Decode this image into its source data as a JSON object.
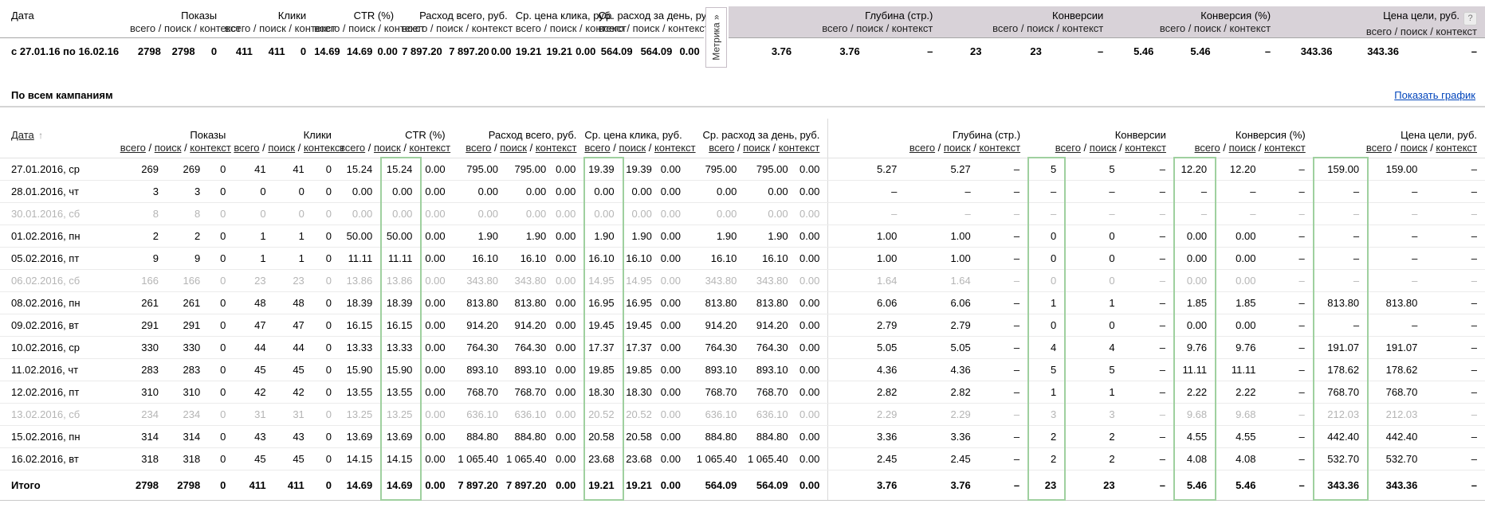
{
  "colors": {
    "highlight_border": "#9fd09f",
    "metrika_header_bg": "#d8d2d8",
    "link_blue": "#0044bb",
    "muted_row_text": "#b5b5b5"
  },
  "subcolumns": {
    "labels": [
      "всего",
      "поиск",
      "контекст"
    ],
    "keys": [
      "total",
      "search",
      "context"
    ],
    "separator": " / ",
    "joined": "всего / поиск / контекст"
  },
  "groups": [
    {
      "key": "impressions",
      "label": "Показы",
      "metrika": false
    },
    {
      "key": "clicks",
      "label": "Клики",
      "metrika": false
    },
    {
      "key": "ctr",
      "label": "CTR (%)",
      "metrika": false
    },
    {
      "key": "cost-total",
      "label": "Расход всего, руб.",
      "metrika": false
    },
    {
      "key": "avg-click-cost",
      "label": "Ср. цена клика, руб.",
      "metrika": false
    },
    {
      "key": "avg-daily-cost",
      "label": "Ср. расход за день, руб.",
      "metrika": false
    },
    {
      "key": "depth",
      "label": "Глубина (стр.)",
      "metrika": true
    },
    {
      "key": "conversions",
      "label": "Конверсии",
      "metrika": true
    },
    {
      "key": "conversion-rate",
      "label": "Конверсия (%)",
      "metrika": true
    },
    {
      "key": "goal-price",
      "label": "Цена цели, руб.",
      "metrika": true,
      "help": "?"
    }
  ],
  "summary": {
    "date_label": "Дата",
    "date_range": "с 27.01.16 по 16.02.16",
    "metrika_tab": "Метрика »",
    "values": [
      [
        "2798",
        "2798",
        "0"
      ],
      [
        "411",
        "411",
        "0"
      ],
      [
        "14.69",
        "14.69",
        "0.00"
      ],
      [
        "7 897.20",
        "7 897.20",
        "0.00"
      ],
      [
        "19.21",
        "19.21",
        "0.00"
      ],
      [
        "564.09",
        "564.09",
        "0.00"
      ],
      [
        "3.76",
        "3.76",
        "–"
      ],
      [
        "23",
        "23",
        "–"
      ],
      [
        "5.46",
        "5.46",
        "–"
      ],
      [
        "343.36",
        "343.36",
        "–"
      ]
    ]
  },
  "section": {
    "title": "По всем кампаниям",
    "chart_link": "Показать график"
  },
  "table": {
    "date_header": "Дата",
    "sort_arrow": "↑",
    "highlighted_cells": [
      [
        2,
        1
      ],
      [
        4,
        0
      ],
      [
        7,
        0
      ],
      [
        8,
        0
      ],
      [
        9,
        0
      ]
    ],
    "rows": [
      {
        "date": "27.01.2016, ср",
        "muted": false,
        "cells": [
          [
            "269",
            "269",
            "0"
          ],
          [
            "41",
            "41",
            "0"
          ],
          [
            "15.24",
            "15.24",
            "0.00"
          ],
          [
            "795.00",
            "795.00",
            "0.00"
          ],
          [
            "19.39",
            "19.39",
            "0.00"
          ],
          [
            "795.00",
            "795.00",
            "0.00"
          ],
          [
            "5.27",
            "5.27",
            "–"
          ],
          [
            "5",
            "5",
            "–"
          ],
          [
            "12.20",
            "12.20",
            "–"
          ],
          [
            "159.00",
            "159.00",
            "–"
          ]
        ]
      },
      {
        "date": "28.01.2016, чт",
        "muted": false,
        "cells": [
          [
            "3",
            "3",
            "0"
          ],
          [
            "0",
            "0",
            "0"
          ],
          [
            "0.00",
            "0.00",
            "0.00"
          ],
          [
            "0.00",
            "0.00",
            "0.00"
          ],
          [
            "0.00",
            "0.00",
            "0.00"
          ],
          [
            "0.00",
            "0.00",
            "0.00"
          ],
          [
            "–",
            "–",
            "–"
          ],
          [
            "–",
            "–",
            "–"
          ],
          [
            "–",
            "–",
            "–"
          ],
          [
            "–",
            "–",
            "–"
          ]
        ]
      },
      {
        "date": "30.01.2016, сб",
        "muted": true,
        "cells": [
          [
            "8",
            "8",
            "0"
          ],
          [
            "0",
            "0",
            "0"
          ],
          [
            "0.00",
            "0.00",
            "0.00"
          ],
          [
            "0.00",
            "0.00",
            "0.00"
          ],
          [
            "0.00",
            "0.00",
            "0.00"
          ],
          [
            "0.00",
            "0.00",
            "0.00"
          ],
          [
            "–",
            "–",
            "–"
          ],
          [
            "–",
            "–",
            "–"
          ],
          [
            "–",
            "–",
            "–"
          ],
          [
            "–",
            "–",
            "–"
          ]
        ]
      },
      {
        "date": "01.02.2016, пн",
        "muted": false,
        "cells": [
          [
            "2",
            "2",
            "0"
          ],
          [
            "1",
            "1",
            "0"
          ],
          [
            "50.00",
            "50.00",
            "0.00"
          ],
          [
            "1.90",
            "1.90",
            "0.00"
          ],
          [
            "1.90",
            "1.90",
            "0.00"
          ],
          [
            "1.90",
            "1.90",
            "0.00"
          ],
          [
            "1.00",
            "1.00",
            "–"
          ],
          [
            "0",
            "0",
            "–"
          ],
          [
            "0.00",
            "0.00",
            "–"
          ],
          [
            "–",
            "–",
            "–"
          ]
        ]
      },
      {
        "date": "05.02.2016, пт",
        "muted": false,
        "cells": [
          [
            "9",
            "9",
            "0"
          ],
          [
            "1",
            "1",
            "0"
          ],
          [
            "11.11",
            "11.11",
            "0.00"
          ],
          [
            "16.10",
            "16.10",
            "0.00"
          ],
          [
            "16.10",
            "16.10",
            "0.00"
          ],
          [
            "16.10",
            "16.10",
            "0.00"
          ],
          [
            "1.00",
            "1.00",
            "–"
          ],
          [
            "0",
            "0",
            "–"
          ],
          [
            "0.00",
            "0.00",
            "–"
          ],
          [
            "–",
            "–",
            "–"
          ]
        ]
      },
      {
        "date": "06.02.2016, сб",
        "muted": true,
        "cells": [
          [
            "166",
            "166",
            "0"
          ],
          [
            "23",
            "23",
            "0"
          ],
          [
            "13.86",
            "13.86",
            "0.00"
          ],
          [
            "343.80",
            "343.80",
            "0.00"
          ],
          [
            "14.95",
            "14.95",
            "0.00"
          ],
          [
            "343.80",
            "343.80",
            "0.00"
          ],
          [
            "1.64",
            "1.64",
            "–"
          ],
          [
            "0",
            "0",
            "–"
          ],
          [
            "0.00",
            "0.00",
            "–"
          ],
          [
            "–",
            "–",
            "–"
          ]
        ]
      },
      {
        "date": "08.02.2016, пн",
        "muted": false,
        "cells": [
          [
            "261",
            "261",
            "0"
          ],
          [
            "48",
            "48",
            "0"
          ],
          [
            "18.39",
            "18.39",
            "0.00"
          ],
          [
            "813.80",
            "813.80",
            "0.00"
          ],
          [
            "16.95",
            "16.95",
            "0.00"
          ],
          [
            "813.80",
            "813.80",
            "0.00"
          ],
          [
            "6.06",
            "6.06",
            "–"
          ],
          [
            "1",
            "1",
            "–"
          ],
          [
            "1.85",
            "1.85",
            "–"
          ],
          [
            "813.80",
            "813.80",
            "–"
          ]
        ]
      },
      {
        "date": "09.02.2016, вт",
        "muted": false,
        "cells": [
          [
            "291",
            "291",
            "0"
          ],
          [
            "47",
            "47",
            "0"
          ],
          [
            "16.15",
            "16.15",
            "0.00"
          ],
          [
            "914.20",
            "914.20",
            "0.00"
          ],
          [
            "19.45",
            "19.45",
            "0.00"
          ],
          [
            "914.20",
            "914.20",
            "0.00"
          ],
          [
            "2.79",
            "2.79",
            "–"
          ],
          [
            "0",
            "0",
            "–"
          ],
          [
            "0.00",
            "0.00",
            "–"
          ],
          [
            "–",
            "–",
            "–"
          ]
        ]
      },
      {
        "date": "10.02.2016, ср",
        "muted": false,
        "cells": [
          [
            "330",
            "330",
            "0"
          ],
          [
            "44",
            "44",
            "0"
          ],
          [
            "13.33",
            "13.33",
            "0.00"
          ],
          [
            "764.30",
            "764.30",
            "0.00"
          ],
          [
            "17.37",
            "17.37",
            "0.00"
          ],
          [
            "764.30",
            "764.30",
            "0.00"
          ],
          [
            "5.05",
            "5.05",
            "–"
          ],
          [
            "4",
            "4",
            "–"
          ],
          [
            "9.76",
            "9.76",
            "–"
          ],
          [
            "191.07",
            "191.07",
            "–"
          ]
        ]
      },
      {
        "date": "11.02.2016, чт",
        "muted": false,
        "cells": [
          [
            "283",
            "283",
            "0"
          ],
          [
            "45",
            "45",
            "0"
          ],
          [
            "15.90",
            "15.90",
            "0.00"
          ],
          [
            "893.10",
            "893.10",
            "0.00"
          ],
          [
            "19.85",
            "19.85",
            "0.00"
          ],
          [
            "893.10",
            "893.10",
            "0.00"
          ],
          [
            "4.36",
            "4.36",
            "–"
          ],
          [
            "5",
            "5",
            "–"
          ],
          [
            "11.11",
            "11.11",
            "–"
          ],
          [
            "178.62",
            "178.62",
            "–"
          ]
        ]
      },
      {
        "date": "12.02.2016, пт",
        "muted": false,
        "cells": [
          [
            "310",
            "310",
            "0"
          ],
          [
            "42",
            "42",
            "0"
          ],
          [
            "13.55",
            "13.55",
            "0.00"
          ],
          [
            "768.70",
            "768.70",
            "0.00"
          ],
          [
            "18.30",
            "18.30",
            "0.00"
          ],
          [
            "768.70",
            "768.70",
            "0.00"
          ],
          [
            "2.82",
            "2.82",
            "–"
          ],
          [
            "1",
            "1",
            "–"
          ],
          [
            "2.22",
            "2.22",
            "–"
          ],
          [
            "768.70",
            "768.70",
            "–"
          ]
        ]
      },
      {
        "date": "13.02.2016, сб",
        "muted": true,
        "cells": [
          [
            "234",
            "234",
            "0"
          ],
          [
            "31",
            "31",
            "0"
          ],
          [
            "13.25",
            "13.25",
            "0.00"
          ],
          [
            "636.10",
            "636.10",
            "0.00"
          ],
          [
            "20.52",
            "20.52",
            "0.00"
          ],
          [
            "636.10",
            "636.10",
            "0.00"
          ],
          [
            "2.29",
            "2.29",
            "–"
          ],
          [
            "3",
            "3",
            "–"
          ],
          [
            "9.68",
            "9.68",
            "–"
          ],
          [
            "212.03",
            "212.03",
            "–"
          ]
        ]
      },
      {
        "date": "15.02.2016, пн",
        "muted": false,
        "cells": [
          [
            "314",
            "314",
            "0"
          ],
          [
            "43",
            "43",
            "0"
          ],
          [
            "13.69",
            "13.69",
            "0.00"
          ],
          [
            "884.80",
            "884.80",
            "0.00"
          ],
          [
            "20.58",
            "20.58",
            "0.00"
          ],
          [
            "884.80",
            "884.80",
            "0.00"
          ],
          [
            "3.36",
            "3.36",
            "–"
          ],
          [
            "2",
            "2",
            "–"
          ],
          [
            "4.55",
            "4.55",
            "–"
          ],
          [
            "442.40",
            "442.40",
            "–"
          ]
        ]
      },
      {
        "date": "16.02.2016, вт",
        "muted": false,
        "cells": [
          [
            "318",
            "318",
            "0"
          ],
          [
            "45",
            "45",
            "0"
          ],
          [
            "14.15",
            "14.15",
            "0.00"
          ],
          [
            "1 065.40",
            "1 065.40",
            "0.00"
          ],
          [
            "23.68",
            "23.68",
            "0.00"
          ],
          [
            "1 065.40",
            "1 065.40",
            "0.00"
          ],
          [
            "2.45",
            "2.45",
            "–"
          ],
          [
            "2",
            "2",
            "–"
          ],
          [
            "4.08",
            "4.08",
            "–"
          ],
          [
            "532.70",
            "532.70",
            "–"
          ]
        ]
      }
    ],
    "total": {
      "label": "Итого",
      "cells": [
        [
          "2798",
          "2798",
          "0"
        ],
        [
          "411",
          "411",
          "0"
        ],
        [
          "14.69",
          "14.69",
          "0.00"
        ],
        [
          "7 897.20",
          "7 897.20",
          "0.00"
        ],
        [
          "19.21",
          "19.21",
          "0.00"
        ],
        [
          "564.09",
          "564.09",
          "0.00"
        ],
        [
          "3.76",
          "3.76",
          "–"
        ],
        [
          "23",
          "23",
          "–"
        ],
        [
          "5.46",
          "5.46",
          "–"
        ],
        [
          "343.36",
          "343.36",
          "–"
        ]
      ]
    }
  }
}
